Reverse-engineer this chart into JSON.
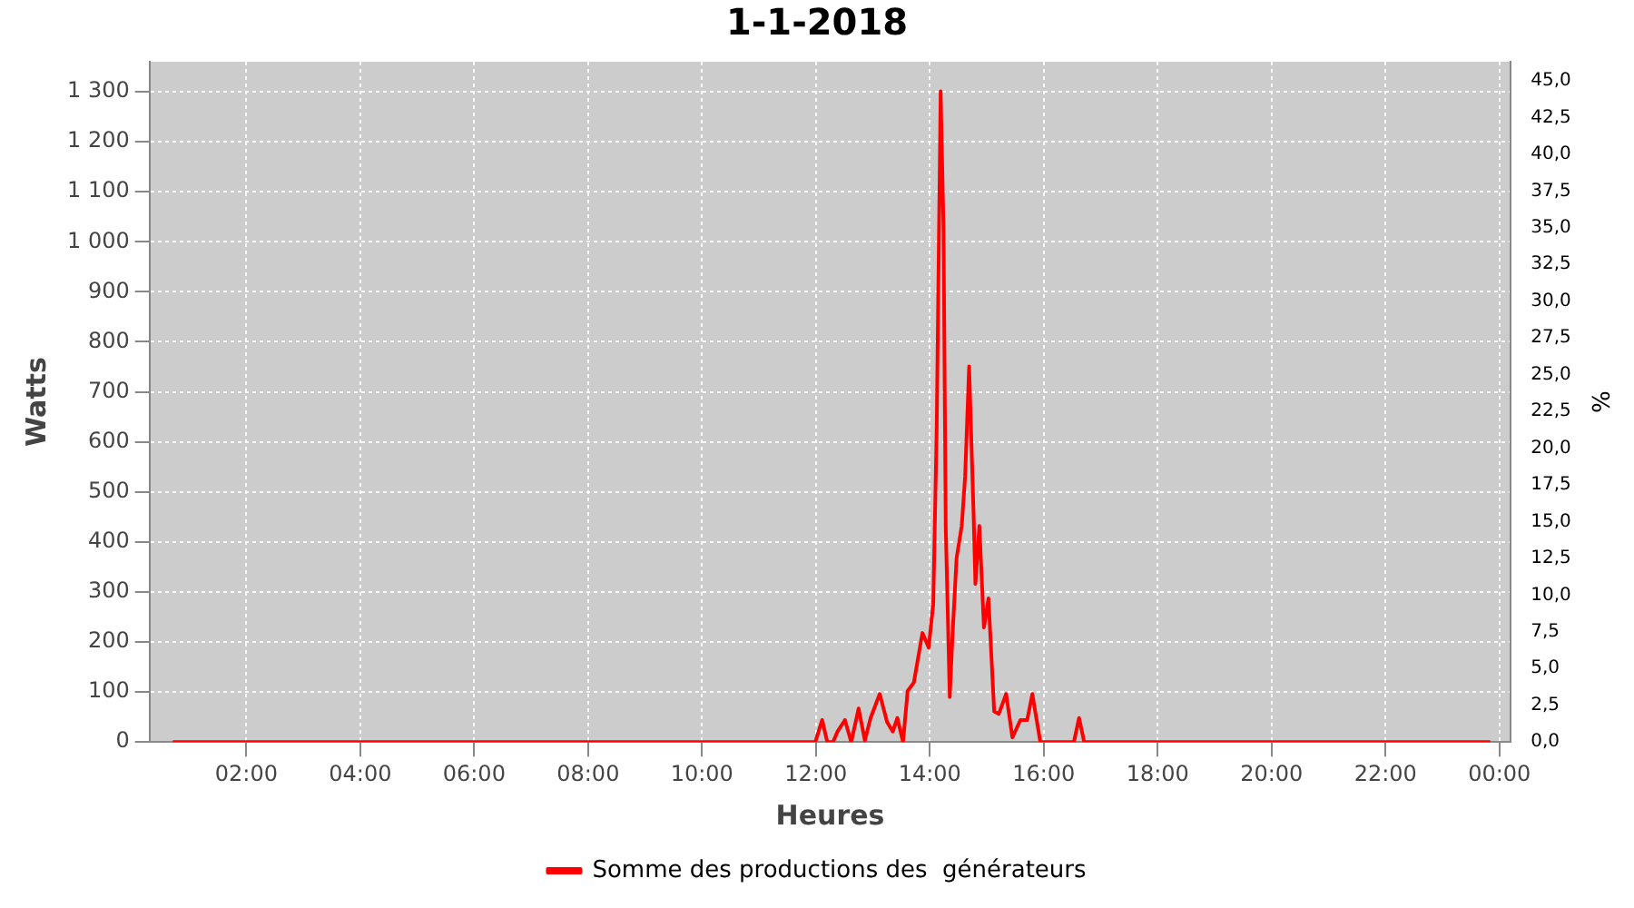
{
  "chart_data": {
    "type": "line",
    "title": "1-1-2018",
    "xlabel": "Heures",
    "ylabel": "Watts",
    "y2label": "%",
    "xlim": [
      0.3,
      24.2
    ],
    "xticks": [
      {
        "value": 2,
        "label": "02:00"
      },
      {
        "value": 4,
        "label": "04:00"
      },
      {
        "value": 6,
        "label": "06:00"
      },
      {
        "value": 8,
        "label": "08:00"
      },
      {
        "value": 10,
        "label": "10:00"
      },
      {
        "value": 12,
        "label": "12:00"
      },
      {
        "value": 14,
        "label": "14:00"
      },
      {
        "value": 16,
        "label": "16:00"
      },
      {
        "value": 18,
        "label": "18:00"
      },
      {
        "value": 20,
        "label": "20:00"
      },
      {
        "value": 22,
        "label": "22:00"
      },
      {
        "value": 24,
        "label": "00:00"
      }
    ],
    "ylim": [
      0,
      1360
    ],
    "yticks": [
      0,
      100,
      200,
      300,
      400,
      500,
      600,
      700,
      800,
      900,
      {
        "value": 1000,
        "label": "1 000"
      },
      {
        "value": 1100,
        "label": "1 100"
      },
      {
        "value": 1200,
        "label": "1 200"
      },
      {
        "value": 1300,
        "label": "1 300"
      }
    ],
    "y2lim": [
      0,
      46.3
    ],
    "y2ticks": [
      {
        "value": 0,
        "label": "0,0"
      },
      {
        "value": 2.5,
        "label": "2,5"
      },
      {
        "value": 5,
        "label": "5,0"
      },
      {
        "value": 7.5,
        "label": "7,5"
      },
      {
        "value": 10,
        "label": "10,0"
      },
      {
        "value": 12.5,
        "label": "12,5"
      },
      {
        "value": 15,
        "label": "15,0"
      },
      {
        "value": 17.5,
        "label": "17,5"
      },
      {
        "value": 20,
        "label": "20,0"
      },
      {
        "value": 22.5,
        "label": "22,5"
      },
      {
        "value": 25,
        "label": "25,0"
      },
      {
        "value": 27.5,
        "label": "27,5"
      },
      {
        "value": 30,
        "label": "30,0"
      },
      {
        "value": 32.5,
        "label": "32,5"
      },
      {
        "value": 35,
        "label": "35,0"
      },
      {
        "value": 37.5,
        "label": "37,5"
      },
      {
        "value": 40,
        "label": "40,0"
      },
      {
        "value": 42.5,
        "label": "42,5"
      },
      {
        "value": 45,
        "label": "45,0"
      }
    ],
    "grid": true,
    "legend": "bottom",
    "marker": "none",
    "line_style": "solid",
    "series": [
      {
        "name": "Somme des productions des  générateurs",
        "color": "#ff0000",
        "x": [
          0.71,
          4,
          8,
          11.99,
          12.11,
          12.2,
          12.3,
          12.38,
          12.51,
          12.62,
          12.75,
          12.86,
          12.96,
          13.12,
          13.25,
          13.35,
          13.43,
          13.53,
          13.61,
          13.72,
          13.87,
          13.98,
          14.06,
          14.12,
          14.19,
          14.24,
          14.28,
          14.35,
          14.4,
          14.47,
          14.56,
          14.62,
          14.69,
          14.77,
          14.8,
          14.87,
          14.95,
          15.03,
          15.13,
          15.21,
          15.34,
          15.45,
          15.59,
          15.71,
          15.8,
          15.94,
          16.53,
          16.62,
          16.71,
          20,
          23.84
        ],
        "values": [
          0,
          0,
          0,
          0,
          44,
          0,
          0,
          21,
          44,
          0,
          67,
          3,
          48,
          96,
          40,
          21,
          48,
          0,
          102,
          119,
          218,
          189,
          276,
          623,
          1301,
          1029,
          426,
          90,
          218,
          368,
          432,
          531,
          751,
          449,
          316,
          432,
          229,
          287,
          61,
          56,
          96,
          9,
          44,
          44,
          96,
          0,
          0,
          48,
          0,
          0,
          0
        ]
      }
    ]
  }
}
